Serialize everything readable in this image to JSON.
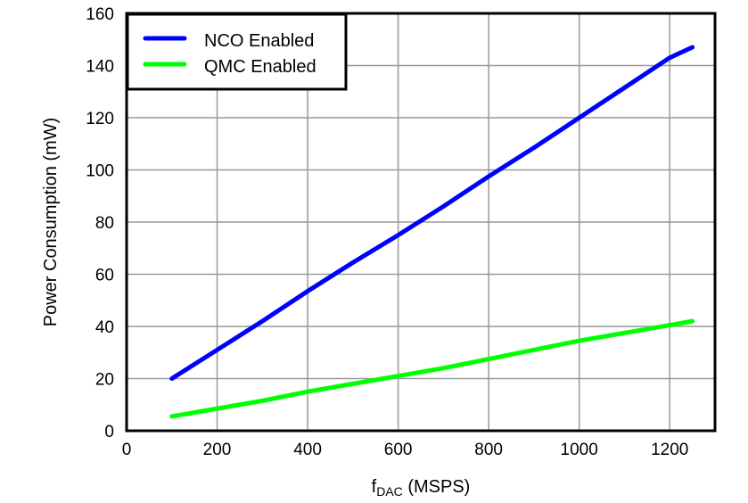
{
  "chart_data": {
    "type": "line",
    "title": "",
    "xlabel_main": "f",
    "xlabel_sub": "DAC",
    "xlabel_unit": " (MSPS)",
    "ylabel": "Power Consumption (mW)",
    "xlim": [
      0,
      1300
    ],
    "ylim": [
      0,
      160
    ],
    "xticks": [
      0,
      200,
      400,
      600,
      800,
      1000,
      1200
    ],
    "yticks": [
      0,
      20,
      40,
      60,
      80,
      100,
      120,
      140,
      160
    ],
    "grid": true,
    "legend_position": "top-left",
    "series": [
      {
        "name": "NCO Enabled",
        "color": "#0000ff",
        "x": [
          100,
          200,
          300,
          400,
          500,
          600,
          700,
          800,
          900,
          1000,
          1100,
          1200,
          1250
        ],
        "y": [
          20,
          31,
          42,
          53.5,
          64.5,
          75,
          86,
          97.5,
          108.5,
          120,
          131.5,
          143,
          147
        ]
      },
      {
        "name": "QMC Enabled",
        "color": "#00ff00",
        "x": [
          100,
          200,
          300,
          400,
          500,
          600,
          700,
          800,
          900,
          1000,
          1100,
          1200,
          1250
        ],
        "y": [
          5.5,
          8.5,
          11.5,
          15,
          18,
          21,
          24,
          27.5,
          31,
          34.5,
          37.5,
          40.5,
          42
        ]
      }
    ]
  }
}
